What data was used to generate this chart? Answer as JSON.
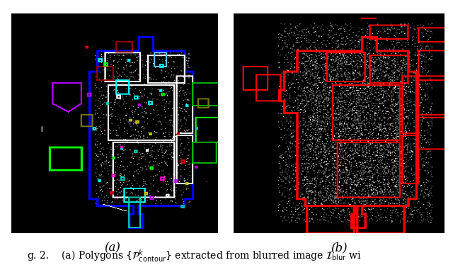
{
  "fig_width": 6.4,
  "fig_height": 3.74,
  "dpi": 100,
  "background_color": "#ffffff",
  "left_label": "(a)",
  "right_label": "(b)",
  "caption_text": "g. 2.    (a) Polygons $\\{\\mathcal{P}^k_\\mathrm{contour}\\}$ extracted from blurred image $\\mathcal{I}_\\mathrm{blur}$ wi",
  "label_fontsize": 12,
  "caption_fontsize": 10
}
